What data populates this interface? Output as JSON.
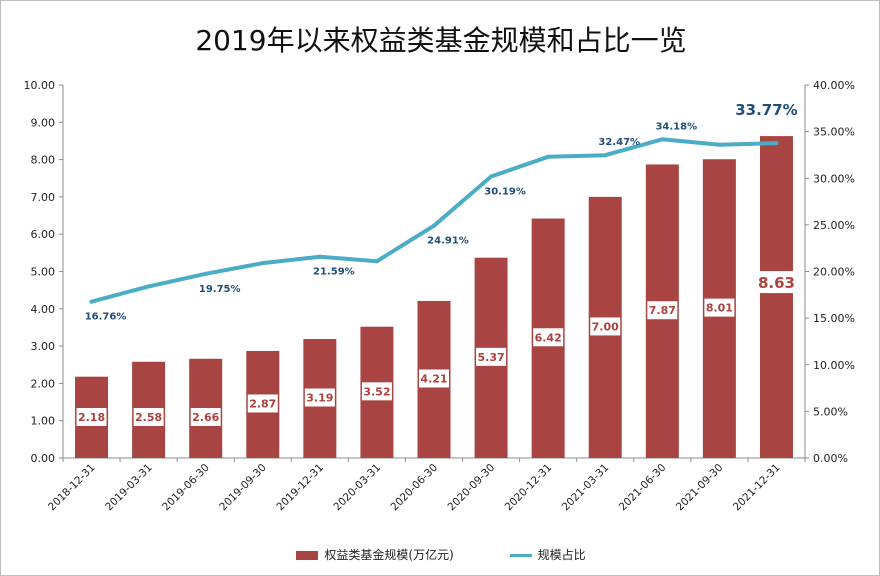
{
  "chart_data": {
    "type": "bar",
    "title": "2019年以来权益类基金规模和占比一览",
    "categories": [
      "2018-12-31",
      "2019-03-31",
      "2019-06-30",
      "2019-09-30",
      "2019-12-31",
      "2020-03-31",
      "2020-06-30",
      "2020-09-30",
      "2020-12-31",
      "2021-03-31",
      "2021-06-30",
      "2021-09-30",
      "2021-12-31"
    ],
    "series": [
      {
        "name": "权益类基金规模(万亿元)",
        "type": "bar",
        "axis": "left",
        "color": "#a84543",
        "values": [
          2.18,
          2.58,
          2.66,
          2.87,
          3.19,
          3.52,
          4.21,
          5.37,
          6.42,
          7.0,
          7.87,
          8.01,
          8.63
        ],
        "labels": [
          "2.18",
          "2.58",
          "2.66",
          "2.87",
          "3.19",
          "3.52",
          "4.21",
          "5.37",
          "6.42",
          "7.00",
          "7.87",
          "8.01",
          "8.63"
        ]
      },
      {
        "name": "规模占比",
        "type": "line",
        "axis": "right",
        "color": "#4bacc6",
        "values": [
          16.76,
          18.4,
          19.75,
          20.9,
          21.59,
          21.1,
          24.91,
          30.19,
          32.3,
          32.47,
          34.18,
          33.6,
          33.77
        ],
        "labels": [
          "16.76%",
          "",
          "19.75%",
          "",
          "21.59%",
          "",
          "24.91%",
          "30.19%",
          "",
          "32.47%",
          "34.18%",
          "",
          "33.77%"
        ]
      }
    ],
    "y_left": {
      "range": [
        0,
        10
      ],
      "ticks": [
        "0.00",
        "1.00",
        "2.00",
        "3.00",
        "4.00",
        "5.00",
        "6.00",
        "7.00",
        "8.00",
        "9.00",
        "10.00"
      ]
    },
    "y_right": {
      "range": [
        0,
        40
      ],
      "ticks": [
        "0.00%",
        "5.00%",
        "10.00%",
        "15.00%",
        "20.00%",
        "25.00%",
        "30.00%",
        "35.00%",
        "40.00%"
      ]
    },
    "grid": false,
    "legend": "bottom"
  }
}
